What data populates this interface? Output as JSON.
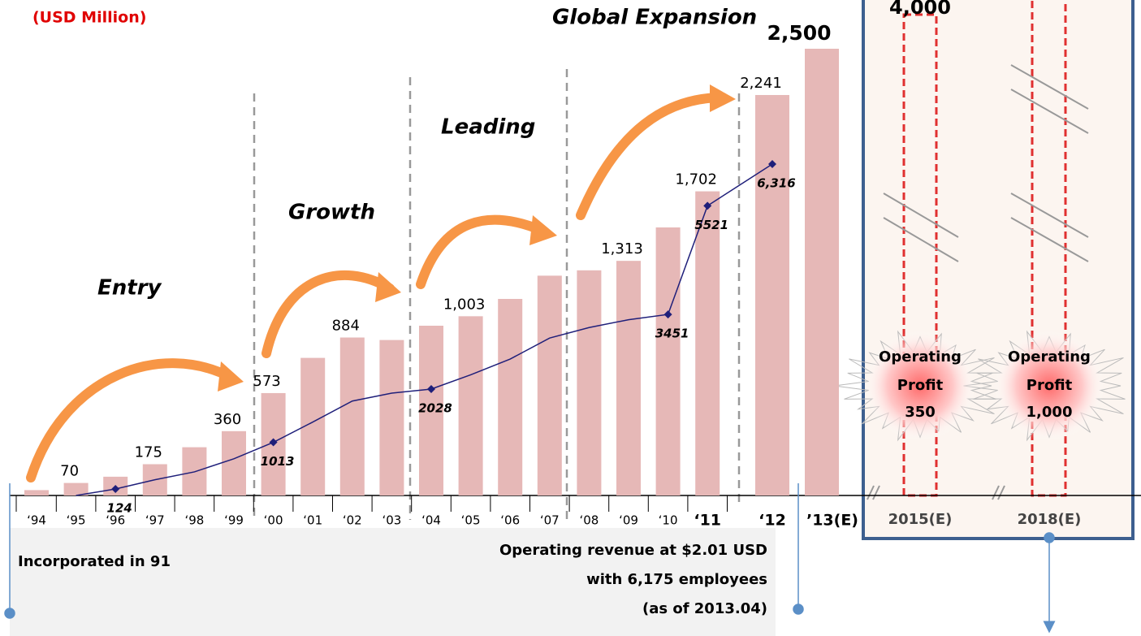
{
  "chart_data": {
    "type": "bar",
    "unit_label": "(USD Million)",
    "categories": [
      "‘94",
      "‘95",
      "‘96",
      "‘97",
      "‘98",
      "‘99",
      "‘00",
      "‘01",
      "‘02",
      "‘03",
      "‘04",
      "‘05",
      "‘06",
      "‘07",
      "‘08",
      "‘09",
      "‘10",
      "‘11",
      "‘12",
      "’13(E)"
    ],
    "values": [
      30,
      70,
      105,
      175,
      270,
      360,
      573,
      770,
      884,
      870,
      950,
      1003,
      1100,
      1230,
      1260,
      1313,
      1500,
      1702,
      2241,
      2500
    ],
    "value_labels": [
      null,
      "70",
      null,
      "175",
      null,
      "360",
      "573",
      null,
      "884",
      null,
      null,
      "1,003",
      null,
      null,
      null,
      "1,313",
      null,
      "1,702",
      "2,241",
      "2,500"
    ],
    "color": "#e6b8b7",
    "series": [
      {
        "color": "#1f1f7a",
        "values": [
          null,
          0,
          124,
          300,
          450,
          700,
          1013,
          1400,
          1800,
          1950,
          2028,
          2300,
          2600,
          3000,
          3200,
          3350,
          3451,
          5521,
          6316,
          null
        ],
        "value_labels": [
          null,
          null,
          "124",
          null,
          null,
          null,
          "1013",
          null,
          null,
          null,
          "2028",
          null,
          null,
          null,
          null,
          null,
          "3451",
          "5521",
          "6,316",
          null
        ]
      }
    ],
    "phases": [
      "Entry",
      "Growth",
      "Leading",
      "Global Expansion"
    ],
    "projections": [
      {
        "category": "2015(E)",
        "value_label": "4,000",
        "profit_title": [
          "Operating",
          "Profit"
        ],
        "profit": 350
      },
      {
        "category": "2018(E)",
        "profit_title": [
          "Operating",
          "Profit"
        ],
        "profit": {
          "value": 1000,
          "label": "1,000"
        }
      }
    ],
    "notes": [
      "Incorporated in 91",
      "Operating revenue at $2.01 USD",
      "with 6,175 employees",
      "(as of 2013.04)"
    ]
  }
}
